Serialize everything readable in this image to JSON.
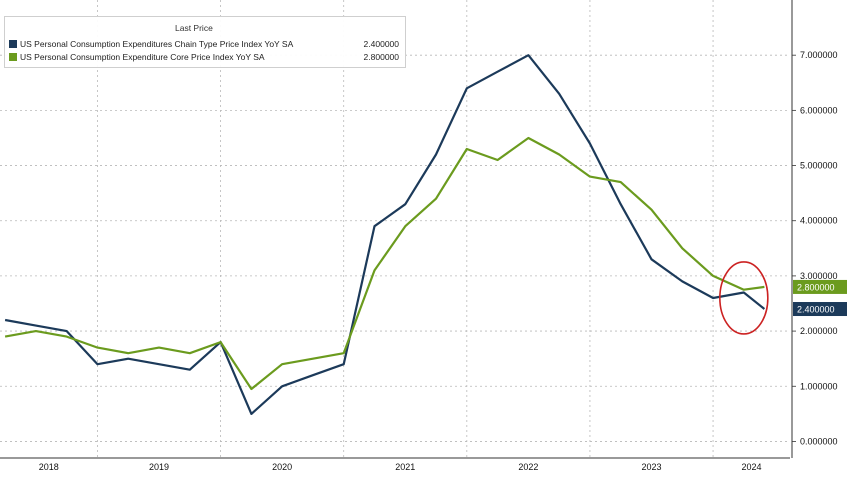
{
  "chart_data": {
    "type": "line",
    "title": "",
    "xlabel": "",
    "ylabel": "",
    "x_range": [
      "2018-04",
      "2024-06"
    ],
    "ylim": [
      -0.3,
      8.0
    ],
    "yticks": [
      0,
      1,
      2,
      3,
      4,
      5,
      6,
      7
    ],
    "ytick_labels": [
      "0.000000",
      "1.000000",
      "2.000000",
      "3.000000",
      "4.000000",
      "5.000000",
      "6.000000",
      "7.000000"
    ],
    "xtick_labels": [
      "2018",
      "2019",
      "2020",
      "2021",
      "2022",
      "2023",
      "2024"
    ],
    "grid": true,
    "legend_placement": "top-left",
    "legend_header": "Last Price",
    "series": [
      {
        "name": "US Personal Consumption Expenditures Chain Type Price Index YoY SA",
        "last_value": "2.400000",
        "color": "#1c3a5a",
        "x": [
          "2018-04",
          "2018-07",
          "2018-10",
          "2019-01",
          "2019-04",
          "2019-07",
          "2019-10",
          "2020-01",
          "2020-04",
          "2020-07",
          "2020-10",
          "2021-01",
          "2021-04",
          "2021-07",
          "2021-10",
          "2022-01",
          "2022-04",
          "2022-07",
          "2022-10",
          "2023-01",
          "2023-04",
          "2023-07",
          "2023-10",
          "2024-01",
          "2024-04",
          "2024-06"
        ],
        "values": [
          2.2,
          2.1,
          2.0,
          1.4,
          1.5,
          1.4,
          1.3,
          1.8,
          0.5,
          1.0,
          1.2,
          1.4,
          3.9,
          4.3,
          5.2,
          6.4,
          6.7,
          7.0,
          6.3,
          5.4,
          4.3,
          3.3,
          2.9,
          2.6,
          2.7,
          2.4
        ]
      },
      {
        "name": "US Personal Consumption Expenditure Core Price Index YoY SA",
        "last_value": "2.800000",
        "color": "#6b9b1e",
        "x": [
          "2018-04",
          "2018-07",
          "2018-10",
          "2019-01",
          "2019-04",
          "2019-07",
          "2019-10",
          "2020-01",
          "2020-04",
          "2020-07",
          "2020-10",
          "2021-01",
          "2021-04",
          "2021-07",
          "2021-10",
          "2022-01",
          "2022-04",
          "2022-07",
          "2022-10",
          "2023-01",
          "2023-04",
          "2023-07",
          "2023-10",
          "2024-01",
          "2024-04",
          "2024-06"
        ],
        "values": [
          1.9,
          2.0,
          1.9,
          1.7,
          1.6,
          1.7,
          1.6,
          1.8,
          0.95,
          1.4,
          1.5,
          1.6,
          3.1,
          3.9,
          4.4,
          5.3,
          5.1,
          5.5,
          5.2,
          4.8,
          4.7,
          4.2,
          3.5,
          3.0,
          2.75,
          2.8
        ]
      }
    ],
    "highlight": {
      "shape": "ellipse",
      "color": "#cc2222",
      "around": "latest values"
    }
  }
}
